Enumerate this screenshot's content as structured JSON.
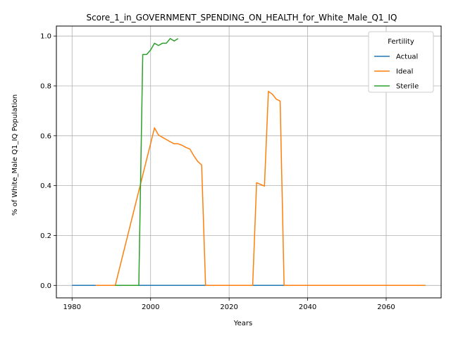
{
  "chart_data": {
    "type": "line",
    "title": "Score_1_in_GOVERNMENT_SPENDING_ON_HEALTH_for_White_Male_Q1_IQ",
    "xlabel": "Years",
    "ylabel": "% of White_Male Q1_IQ Population",
    "xlim": [
      1976,
      2074
    ],
    "ylim": [
      -0.05,
      1.04
    ],
    "xticks": [
      1980,
      2000,
      2020,
      2040,
      2060
    ],
    "yticks": [
      0.0,
      0.2,
      0.4,
      0.6,
      0.8,
      1.0
    ],
    "xtick_labels": [
      "1980",
      "2000",
      "2020",
      "2040",
      "2060"
    ],
    "ytick_labels": [
      "0.0",
      "0.2",
      "0.4",
      "0.6",
      "0.8",
      "1.0"
    ],
    "grid": true,
    "legend": {
      "title": "Fertility",
      "position": "top-right"
    },
    "series": [
      {
        "name": "Actual",
        "color": "#1f77b4",
        "points": [
          [
            1980,
            0.0
          ],
          [
            2070,
            0.0
          ]
        ]
      },
      {
        "name": "Ideal",
        "color": "#ff7f0e",
        "points": [
          [
            1986,
            0.0
          ],
          [
            1991,
            0.0
          ],
          [
            2001,
            0.632
          ],
          [
            2002,
            0.603
          ],
          [
            2003,
            0.594
          ],
          [
            2004,
            0.585
          ],
          [
            2005,
            0.576
          ],
          [
            2006,
            0.568
          ],
          [
            2007,
            0.568
          ],
          [
            2008,
            0.562
          ],
          [
            2009,
            0.553
          ],
          [
            2010,
            0.547
          ],
          [
            2011,
            0.52
          ],
          [
            2012,
            0.497
          ],
          [
            2013,
            0.483
          ],
          [
            2014,
            0.0
          ],
          [
            2026,
            0.0
          ],
          [
            2027,
            0.412
          ],
          [
            2029,
            0.398
          ],
          [
            2030,
            0.778
          ],
          [
            2031,
            0.767
          ],
          [
            2032,
            0.747
          ],
          [
            2033,
            0.739
          ],
          [
            2034,
            0.0
          ],
          [
            2070,
            0.0
          ]
        ]
      },
      {
        "name": "Sterile",
        "color": "#2ca02c",
        "points": [
          [
            1991,
            0.0
          ],
          [
            1997,
            0.0
          ],
          [
            1998,
            0.926
          ],
          [
            1999,
            0.926
          ],
          [
            2000,
            0.944
          ],
          [
            2001,
            0.971
          ],
          [
            2002,
            0.962
          ],
          [
            2003,
            0.971
          ],
          [
            2004,
            0.971
          ],
          [
            2005,
            0.99
          ],
          [
            2006,
            0.98
          ],
          [
            2007,
            0.99
          ]
        ]
      }
    ]
  }
}
